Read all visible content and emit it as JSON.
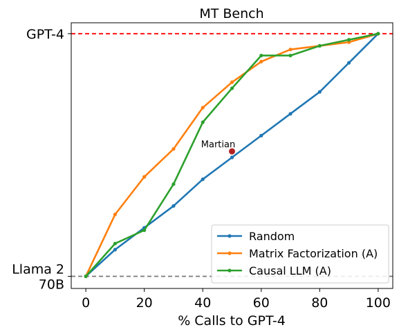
{
  "chart_data": {
    "type": "line",
    "title": "MT Bench",
    "xlabel": "% Calls to GPT-4",
    "ylabel": "",
    "xlim": [
      -5,
      105
    ],
    "ylim": [
      -0.05,
      1.045
    ],
    "x_ticks": [
      0,
      20,
      40,
      60,
      80,
      100
    ],
    "x_tick_labels": [
      "0",
      "20",
      "40",
      "60",
      "80",
      "100"
    ],
    "y_tick_labels": [
      {
        "value": 1,
        "text": "GPT-4"
      },
      {
        "value": 0,
        "text": "Llama 2\n70B"
      }
    ],
    "reference_lines": [
      {
        "label": "GPT-4",
        "y": 1,
        "color": "#ff0000",
        "style": "dashed"
      },
      {
        "label": "Llama 2 70B",
        "y": 0,
        "color": "#808080",
        "style": "dashed"
      }
    ],
    "series": [
      {
        "name": "Random",
        "color": "#1f77b4",
        "x": [
          0,
          10,
          20,
          30,
          40,
          50,
          60,
          70,
          80,
          90,
          100
        ],
        "y": [
          0.0,
          0.11,
          0.2,
          0.29,
          0.4,
          0.49,
          0.58,
          0.67,
          0.76,
          0.88,
          1.0
        ]
      },
      {
        "name": "Matrix Factorization (A)",
        "color": "#ff7f0e",
        "x": [
          0,
          10,
          20,
          30,
          40,
          50,
          60,
          70,
          80,
          90,
          100
        ],
        "y": [
          0.0,
          0.255,
          0.41,
          0.525,
          0.695,
          0.8,
          0.885,
          0.935,
          0.95,
          0.965,
          1.0
        ]
      },
      {
        "name": "Causal LLM (A)",
        "color": "#2ca02c",
        "x": [
          0,
          10,
          20,
          30,
          40,
          50,
          60,
          70,
          80,
          90,
          100
        ],
        "y": [
          0.0,
          0.135,
          0.19,
          0.38,
          0.635,
          0.775,
          0.91,
          0.91,
          0.95,
          0.975,
          1.0
        ]
      }
    ],
    "annotations": [
      {
        "text": "Martian",
        "x": 50,
        "y": 0.515,
        "color": "#b22222"
      }
    ],
    "legend": {
      "position": "lower-right"
    },
    "grid": false
  }
}
